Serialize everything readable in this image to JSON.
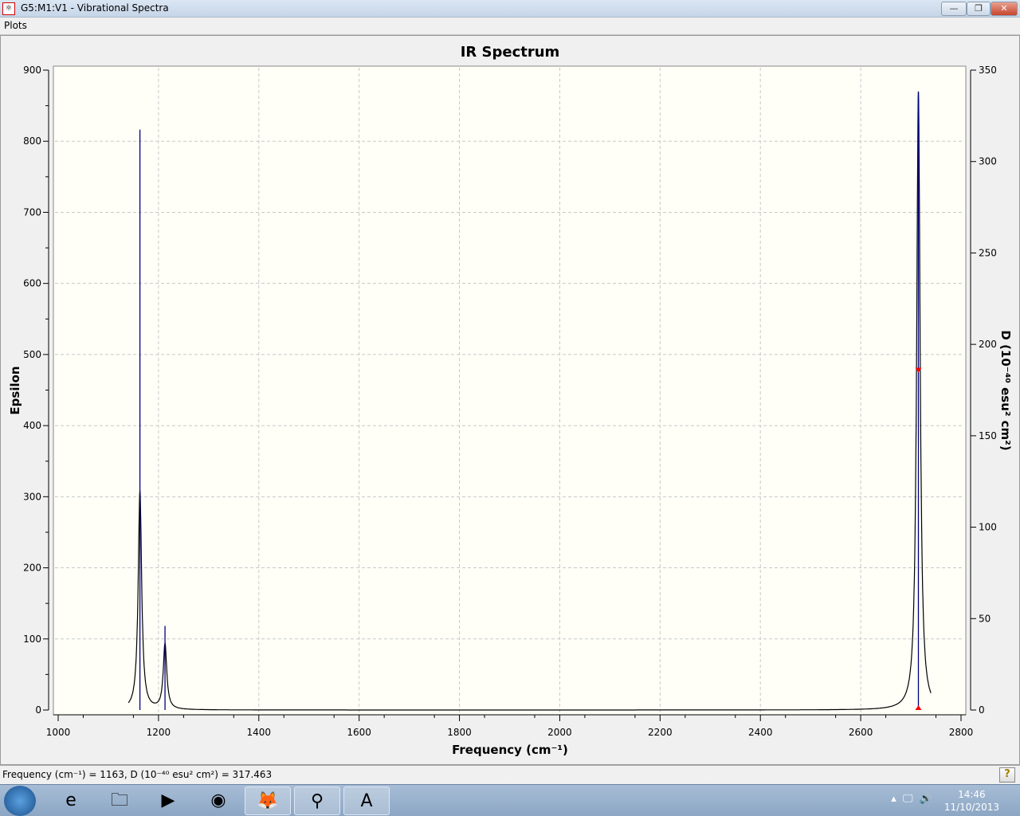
{
  "window": {
    "title": "G5:M1:V1 - Vibrational Spectra",
    "minimize": "—",
    "restore": "❐",
    "close": "✕"
  },
  "menu": {
    "plots": "Plots"
  },
  "status": {
    "text": "Frequency (cm⁻¹) = 1163, D (10⁻⁴⁰ esu² cm²) = 317.463",
    "help": "?"
  },
  "taskbar": {
    "time": "14:46",
    "date": "11/10/2013",
    "apps": [
      {
        "name": "internet-explorer",
        "glyph": "e"
      },
      {
        "name": "file-explorer",
        "glyph": "🗀"
      },
      {
        "name": "media-player",
        "glyph": "▶"
      },
      {
        "name": "chrome",
        "glyph": "◉"
      },
      {
        "name": "firefox",
        "glyph": "🦊"
      },
      {
        "name": "gaussview",
        "glyph": "⚲"
      },
      {
        "name": "wordpad",
        "glyph": "A"
      }
    ]
  },
  "chart_data": {
    "type": "line",
    "title": "IR Spectrum",
    "xlabel": "Frequency (cm⁻¹)",
    "ylabel": "Epsilon",
    "y2label": "D (10⁻⁴⁰ esu² cm²)",
    "xlim": [
      1000,
      2800
    ],
    "ylim": [
      0,
      900
    ],
    "y2lim": [
      0,
      350
    ],
    "xticks": [
      1000,
      1200,
      1400,
      1600,
      1800,
      2000,
      2200,
      2400,
      2600,
      2800
    ],
    "yticks": [
      0,
      100,
      200,
      300,
      400,
      500,
      600,
      700,
      800,
      900
    ],
    "y2ticks": [
      0,
      50,
      100,
      150,
      200,
      250,
      300,
      350
    ],
    "grid": true,
    "curve_range": [
      1140,
      2740
    ],
    "peaks": [
      {
        "frequency": 1163,
        "D": 317.463,
        "epsilon": 308
      },
      {
        "frequency": 1213,
        "D": 46,
        "epsilon": 92
      },
      {
        "frequency": 2715,
        "D": 338,
        "epsilon": 870
      }
    ],
    "selected_frequency": 2715,
    "colors": {
      "curve": "#000000",
      "sticks": "#000080",
      "marker": "#ff0000",
      "background": "#fffff8"
    }
  }
}
